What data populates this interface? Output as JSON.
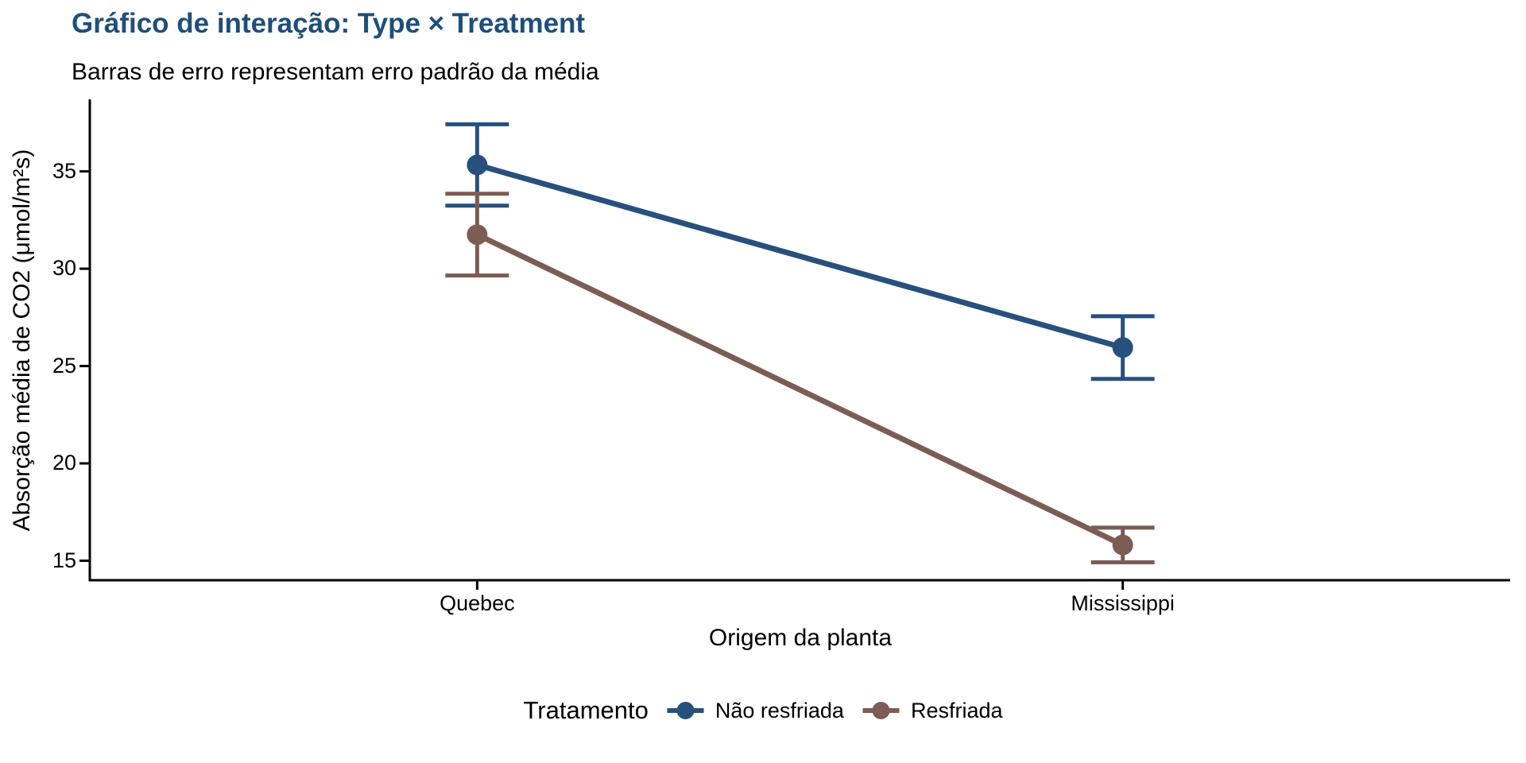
{
  "title": {
    "text": "Gráfico de interação: Type × Treatment",
    "color": "#1F4E79"
  },
  "subtitle": "Barras de erro representam erro padrão da média",
  "chart_data": {
    "type": "line",
    "categories": [
      "Quebec",
      "Mississippi"
    ],
    "series": [
      {
        "name": "Não resfriada",
        "color": "#27507D",
        "values": [
          35.33,
          25.95
        ],
        "se": [
          2.09,
          1.61
        ]
      },
      {
        "name": "Resfriada",
        "color": "#7B5D53",
        "values": [
          31.75,
          15.81
        ],
        "se": [
          2.1,
          0.89
        ]
      }
    ],
    "title": "Gráfico de interação: Type × Treatment",
    "subtitle": "Barras de erro representam erro padrão da média",
    "xlabel": "Origem da planta",
    "ylabel": "Absorção média de CO2 (μmol/m²s)",
    "yticks": [
      35,
      30,
      25,
      20,
      15
    ],
    "ylim": [
      14.0,
      38.7
    ],
    "grid": false,
    "error_bars": "standard error of the mean",
    "legend_title": "Tratamento",
    "legend_position": "bottom",
    "axis_color": "#000000"
  }
}
